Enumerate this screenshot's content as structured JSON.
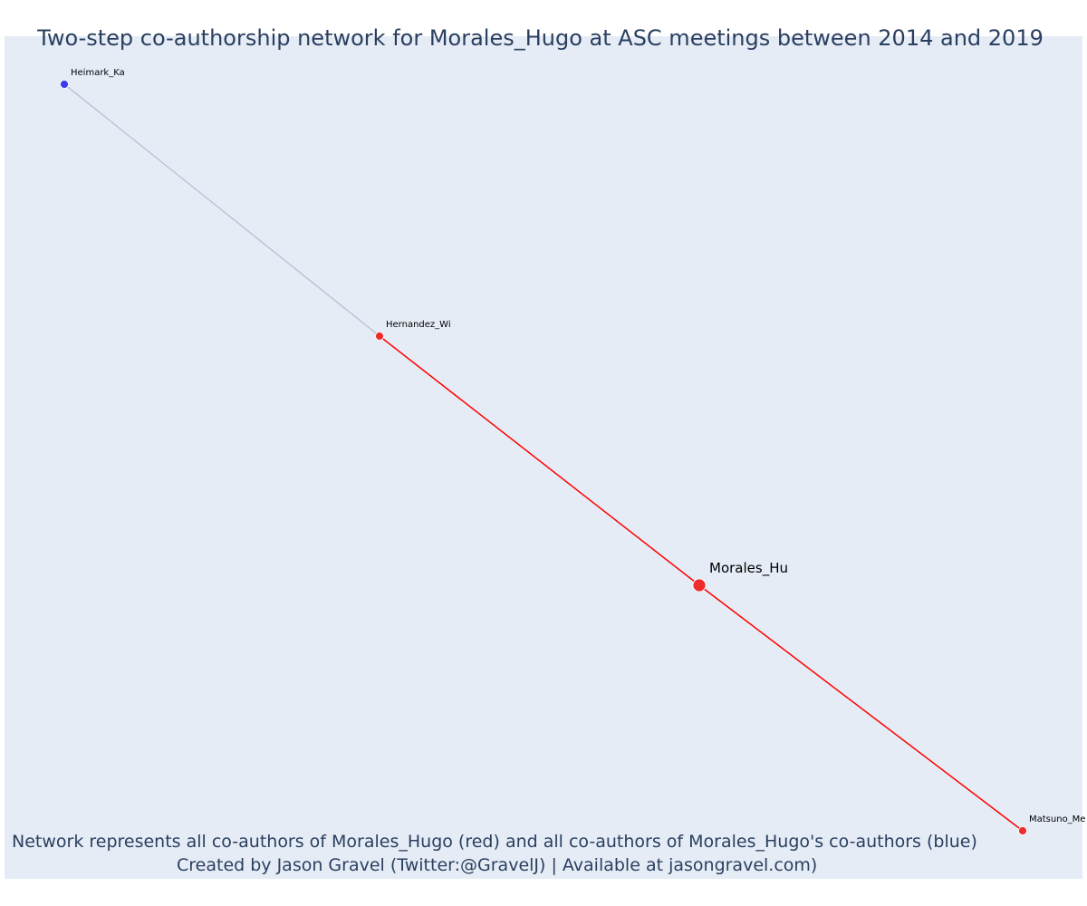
{
  "title": "Two-step co-authorship network for Morales_Hugo at ASC meetings between 2014 and 2019",
  "caption_line1": "Network represents all co-authors of Morales_Hugo (red) and all co-authors of Morales_Hugo's co-authors (blue)",
  "caption_line2": "Created by Jason Gravel (Twitter:@GravelJ) | Available at jasongravel.com)",
  "colors": {
    "background": "#e5ecf6",
    "text": "#2a3f5f",
    "focal_and_coauthor": "#ef2b2b",
    "second_step": "#3b3bf0",
    "edge_first_step": "#ff0000",
    "edge_second_step": "#b8bccb"
  },
  "nodes": [
    {
      "id": "Heimark_Ka",
      "label": "Heimark_Ka",
      "group": "second-step",
      "color": "#3b3bf0"
    },
    {
      "id": "Hernandez_Wi",
      "label": "Hernandez_Wi",
      "group": "co-author",
      "color": "#ef2b2b"
    },
    {
      "id": "Morales_Hu",
      "label": "Morales_Hu",
      "group": "focal",
      "color": "#ef2b2b"
    },
    {
      "id": "Matsuno_Me",
      "label": "Matsuno_Me",
      "group": "co-author",
      "color": "#ef2b2b"
    }
  ],
  "edges": [
    {
      "source": "Heimark_Ka",
      "target": "Hernandez_Wi",
      "color": "#b8bccb"
    },
    {
      "source": "Hernandez_Wi",
      "target": "Morales_Hu",
      "color": "#ff0000"
    },
    {
      "source": "Morales_Hu",
      "target": "Matsuno_Me",
      "color": "#ff0000"
    }
  ]
}
